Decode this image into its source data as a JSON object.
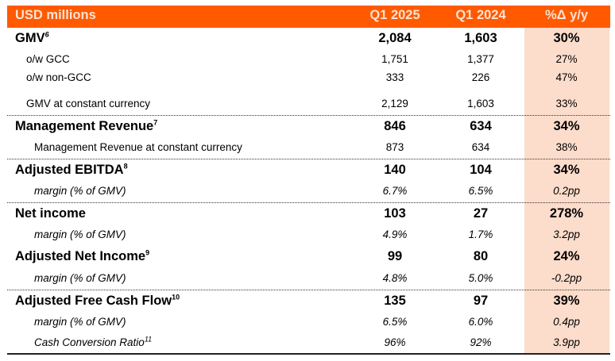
{
  "header": {
    "label": "USD millions",
    "col1": "Q1 2025",
    "col2": "Q1 2024",
    "col3": "%Δ y/y"
  },
  "colors": {
    "header_bg": "#ff5a00",
    "highlight_bg": "#fcdccb"
  },
  "rows": [
    {
      "label": "GMV",
      "sup": "6",
      "v1": "2,084",
      "v2": "1,603",
      "v3": "30%"
    },
    {
      "label": "o/w GCC",
      "v1": "1,751",
      "v2": "1,377",
      "v3": "27%"
    },
    {
      "label": "o/w non-GCC",
      "v1": "333",
      "v2": "226",
      "v3": "47%"
    },
    {
      "label": "GMV at constant currency",
      "v1": "2,129",
      "v2": "1,603",
      "v3": "33%"
    },
    {
      "label": "Management Revenue",
      "sup": "7",
      "v1": "846",
      "v2": "634",
      "v3": "34%"
    },
    {
      "label": "Management Revenue at constant currency",
      "v1": "873",
      "v2": "634",
      "v3": "38%"
    },
    {
      "label": "Adjusted EBITDA",
      "sup": "8",
      "v1": "140",
      "v2": "104",
      "v3": "34%"
    },
    {
      "label": "margin (% of GMV)",
      "v1": "6.7%",
      "v2": "6.5%",
      "v3": "0.2pp"
    },
    {
      "label": "Net income",
      "v1": "103",
      "v2": "27",
      "v3": "278%"
    },
    {
      "label": "margin (% of GMV)",
      "v1": "4.9%",
      "v2": "1.7%",
      "v3": "3.2pp"
    },
    {
      "label": "Adjusted Net Income",
      "sup": "9",
      "v1": "99",
      "v2": "80",
      "v3": "24%"
    },
    {
      "label": "margin (% of GMV)",
      "v1": "4.8%",
      "v2": "5.0%",
      "v3": "-0.2pp"
    },
    {
      "label": "Adjusted Free Cash Flow",
      "sup": "10",
      "v1": "135",
      "v2": "97",
      "v3": "39%"
    },
    {
      "label": "margin (% of GMV)",
      "v1": "6.5%",
      "v2": "6.0%",
      "v3": "0.4pp"
    },
    {
      "label": "Cash Conversion Ratio",
      "sup": "11",
      "v1": "96%",
      "v2": "92%",
      "v3": "3.9pp"
    }
  ]
}
